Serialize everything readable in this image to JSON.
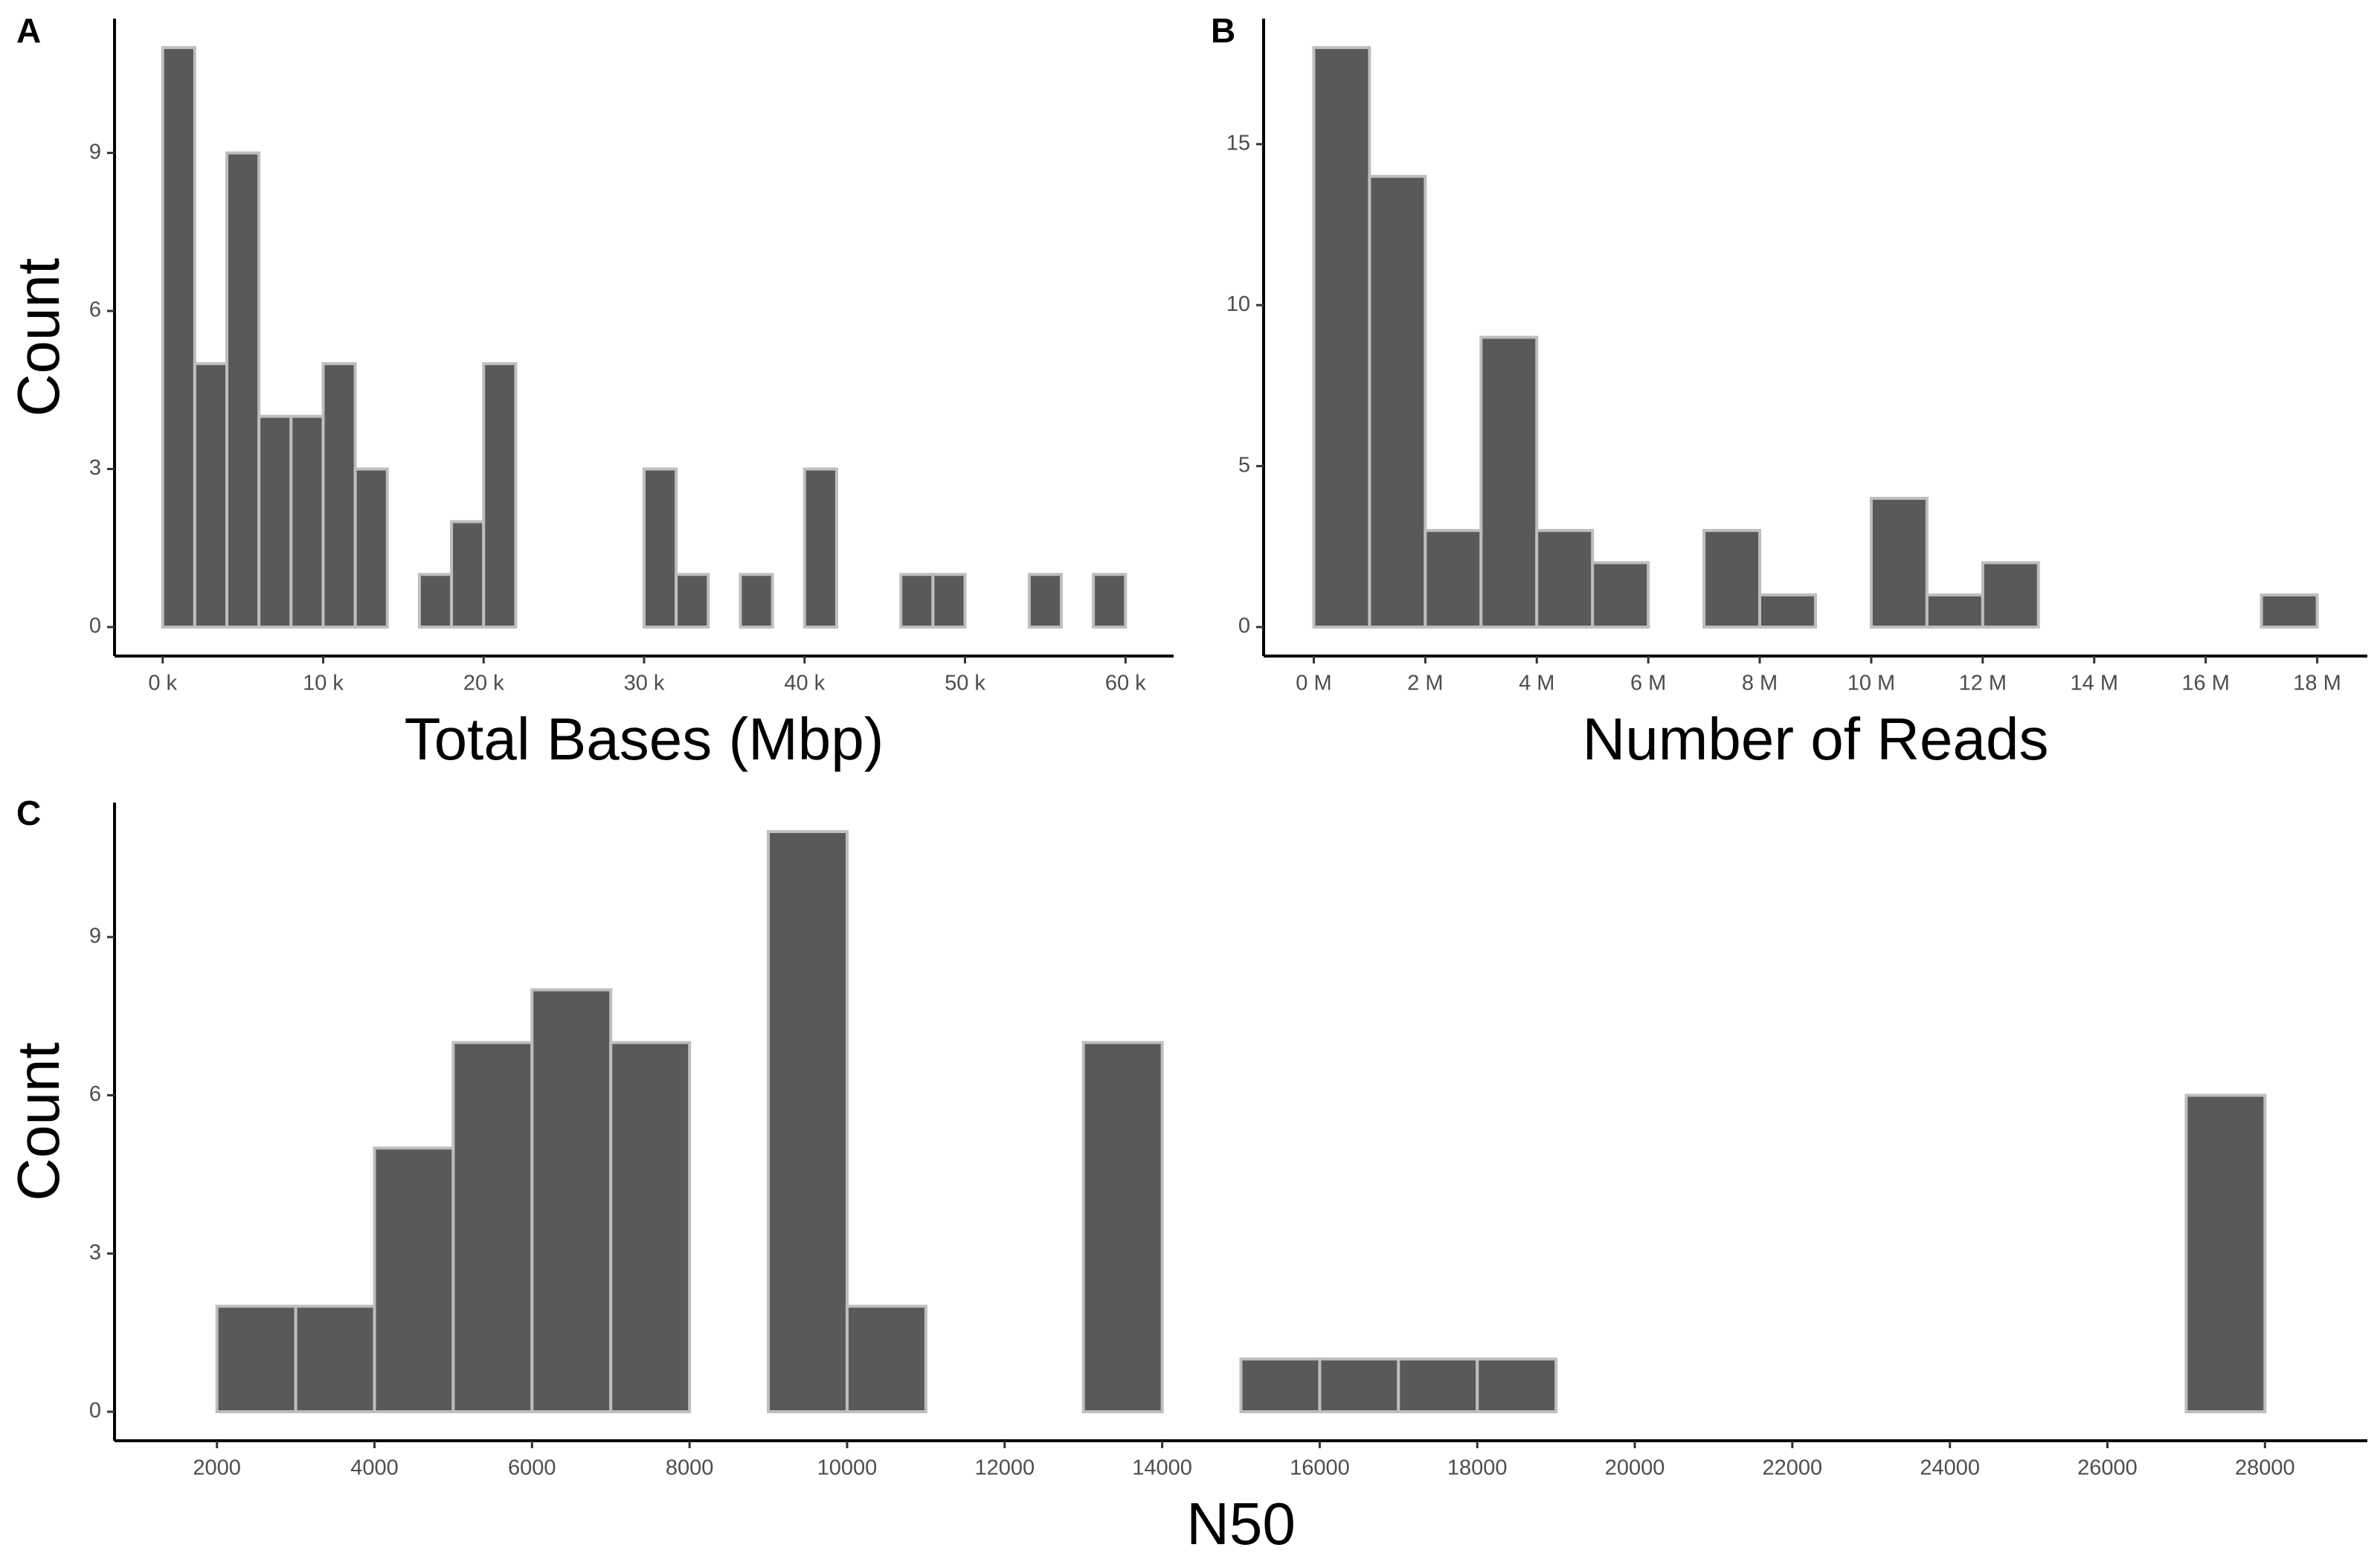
{
  "chart_data": [
    {
      "type": "histogram",
      "panel_label": "A",
      "x_label": "Total Bases (Mbp)",
      "y_label": "Count",
      "color": "#595959",
      "edgecolor": "#bebebe",
      "bins": [
        0,
        2000,
        4000,
        6000,
        8000,
        10000,
        12000,
        14000,
        16000,
        18000,
        20000,
        22000,
        24000,
        26000,
        28000,
        30000,
        32000,
        34000,
        36000,
        38000,
        40000,
        42000,
        44000,
        46000,
        48000,
        50000,
        52000,
        54000,
        56000,
        58000,
        60000
      ],
      "values": [
        11,
        5,
        9,
        4,
        4,
        5,
        3,
        0,
        1,
        2,
        5,
        0,
        0,
        0,
        0,
        3,
        1,
        0,
        1,
        0,
        3,
        0,
        0,
        1,
        1,
        0,
        0,
        1,
        0,
        1
      ],
      "xlim": [
        -3000,
        63000
      ],
      "ylim": [
        -0.55,
        11.55
      ],
      "xticks": [
        {
          "value": 0,
          "label": "0 k"
        },
        {
          "value": 10000,
          "label": "10 k"
        },
        {
          "value": 20000,
          "label": "20 k"
        },
        {
          "value": 30000,
          "label": "30 k"
        },
        {
          "value": 40000,
          "label": "40 k"
        },
        {
          "value": 50000,
          "label": "50 k"
        },
        {
          "value": 60000,
          "label": "60 k"
        }
      ],
      "yticks": [
        0,
        3,
        6,
        9
      ]
    },
    {
      "type": "histogram",
      "panel_label": "B",
      "x_label": "Number of Reads",
      "color": "#595959",
      "edgecolor": "#bebebe",
      "bins": [
        0,
        1000000,
        2000000,
        3000000,
        4000000,
        5000000,
        6000000,
        7000000,
        8000000,
        9000000,
        10000000,
        11000000,
        12000000,
        13000000,
        14000000,
        15000000,
        16000000,
        17000000,
        18000000
      ],
      "values": [
        18,
        14,
        3,
        9,
        3,
        2,
        0,
        3,
        1,
        0,
        4,
        1,
        2,
        0,
        0,
        0,
        0,
        1
      ],
      "xlim": [
        -900000,
        18900000
      ],
      "ylim": [
        -0.9,
        18.9
      ],
      "xticks": [
        {
          "value": 0,
          "label": "0 M"
        },
        {
          "value": 2000000,
          "label": "2 M"
        },
        {
          "value": 4000000,
          "label": "4 M"
        },
        {
          "value": 6000000,
          "label": "6 M"
        },
        {
          "value": 8000000,
          "label": "8 M"
        },
        {
          "value": 10000000,
          "label": "10 M"
        },
        {
          "value": 12000000,
          "label": "12 M"
        },
        {
          "value": 14000000,
          "label": "14 M"
        },
        {
          "value": 16000000,
          "label": "16 M"
        },
        {
          "value": 18000000,
          "label": "18 M"
        }
      ],
      "yticks": [
        0,
        5,
        10,
        15
      ]
    },
    {
      "type": "histogram",
      "panel_label": "C",
      "x_label": "N50",
      "y_label": "Count",
      "color": "#595959",
      "edgecolor": "#bebebe",
      "bins": [
        2000,
        3000,
        4000,
        5000,
        6000,
        7000,
        8000,
        9000,
        10000,
        11000,
        12000,
        13000,
        14000,
        15000,
        16000,
        17000,
        18000,
        19000,
        20000,
        21000,
        22000,
        23000,
        24000,
        25000,
        26000,
        27000,
        28000
      ],
      "values": [
        2,
        2,
        5,
        7,
        8,
        7,
        0,
        11,
        2,
        0,
        0,
        7,
        0,
        1,
        1,
        1,
        1,
        0,
        0,
        0,
        0,
        0,
        0,
        0,
        0,
        6
      ],
      "xlim": [
        700,
        29300
      ],
      "ylim": [
        -0.55,
        11.55
      ],
      "xticks": [
        2000,
        4000,
        6000,
        8000,
        10000,
        12000,
        14000,
        16000,
        18000,
        20000,
        22000,
        24000,
        26000,
        28000
      ],
      "yticks": [
        0,
        3,
        6,
        9
      ]
    }
  ]
}
